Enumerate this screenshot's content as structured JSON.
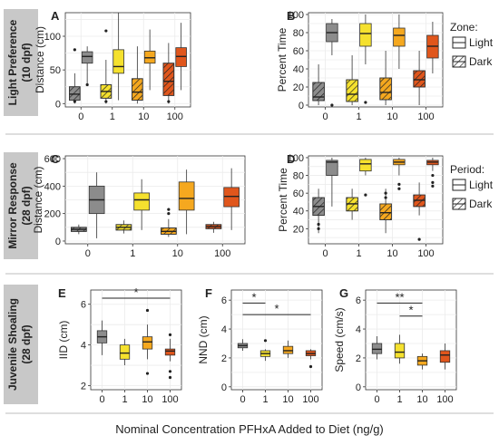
{
  "colors": {
    "c0": "#8c8c8c",
    "c1": "#f5e12e",
    "c10": "#f5a81f",
    "c100": "#e0561c",
    "grid": "#ebebeb",
    "panel": "#ffffff",
    "strip": "#c8c8c8",
    "sep": "#bdbdbd"
  },
  "row_labels": [
    {
      "line1": "Light Preference",
      "line2": "(10 dpf)"
    },
    {
      "line1": "Mirror Response",
      "line2": "(28 dpf)"
    },
    {
      "line1": "Juvenile Shoaling",
      "line2": "(28 dpf)"
    }
  ],
  "legends": [
    {
      "title": "Zone:",
      "items": [
        "Light",
        "Dark"
      ]
    },
    {
      "title": "Period:",
      "items": [
        "Light",
        "Dark"
      ]
    }
  ],
  "footer": "Nominal Concentration PFHxA Added to Diet (ng/g)",
  "chart_data": [
    {
      "letter": "A",
      "type": "box",
      "ylabel": "Distance (cm)",
      "ylim": [
        -5,
        135
      ],
      "yticks": [
        0,
        50,
        100
      ],
      "categories": [
        "0",
        "1",
        "10",
        "100"
      ],
      "series": [
        {
          "hatch": true,
          "boxes": [
            [
              0,
              5,
              14,
              25,
              45
            ],
            [
              0,
              8,
              18,
              28,
              65
            ],
            [
              0,
              5,
              17,
              37,
              85
            ],
            [
              0,
              12,
              33,
              60,
              90
            ]
          ],
          "outliers": [
            [
              0,
              80
            ],
            [
              0,
              3
            ],
            [
              1,
              108
            ],
            [
              1,
              3
            ],
            [
              3,
              3
            ]
          ]
        },
        {
          "hatch": false,
          "boxes": [
            [
              30,
              60,
              70,
              77,
              85
            ],
            [
              5,
              45,
              55,
              80,
              135
            ],
            [
              20,
              60,
              68,
              78,
              110
            ],
            [
              20,
              55,
              70,
              83,
              120
            ]
          ],
          "outliers": [
            [
              0,
              28
            ]
          ]
        }
      ]
    },
    {
      "letter": "B",
      "type": "box",
      "ylabel": "Percent Time",
      "ylim": [
        -2,
        102
      ],
      "yticks": [
        0,
        20,
        40,
        60,
        80,
        100
      ],
      "categories": [
        "0",
        "1",
        "10",
        "100"
      ],
      "series": [
        {
          "hatch": true,
          "boxes": [
            [
              0,
              5,
              9,
              25,
              45
            ],
            [
              0,
              4,
              12,
              28,
              55
            ],
            [
              0,
              6,
              14,
              30,
              60
            ],
            [
              0,
              20,
              28,
              38,
              60
            ]
          ],
          "outliers": []
        },
        {
          "hatch": false,
          "boxes": [
            [
              55,
              70,
              80,
              90,
              95
            ],
            [
              45,
              65,
              79,
              90,
              100
            ],
            [
              40,
              65,
              77,
              85,
              100
            ],
            [
              35,
              52,
              65,
              77,
              92
            ]
          ],
          "outliers": [
            [
              0,
              0
            ],
            [
              1,
              3
            ]
          ]
        }
      ]
    },
    {
      "letter": "C",
      "type": "box",
      "ylabel": "Distance (cm)",
      "ylim": [
        -20,
        620
      ],
      "yticks": [
        0,
        200,
        400,
        600
      ],
      "categories": [
        "0",
        "1",
        "10",
        "100"
      ],
      "series": [
        {
          "hatch": true,
          "boxes": [
            [
              50,
              70,
              85,
              100,
              120
            ],
            [
              55,
              80,
              100,
              120,
              150
            ],
            [
              30,
              50,
              70,
              95,
              160
            ],
            [
              60,
              90,
              105,
              120,
              140
            ]
          ],
          "outliers": [
            [
              2,
              230
            ],
            [
              2,
              200
            ]
          ]
        },
        {
          "hatch": false,
          "boxes": [
            [
              20,
              200,
              300,
              400,
              500
            ],
            [
              80,
              225,
              300,
              350,
              450
            ],
            [
              50,
              225,
              310,
              430,
              520
            ],
            [
              80,
              250,
              325,
              390,
              530
            ]
          ],
          "outliers": []
        }
      ]
    },
    {
      "letter": "D",
      "type": "box",
      "ylabel": "Percent Time",
      "ylim": [
        3,
        102
      ],
      "yticks": [
        20,
        40,
        60,
        80,
        100
      ],
      "categories": [
        "0",
        "1",
        "10",
        "100"
      ],
      "series": [
        {
          "hatch": true,
          "boxes": [
            [
              15,
              35,
              45,
              55,
              65
            ],
            [
              30,
              40,
              48,
              55,
              65
            ],
            [
              15,
              30,
              38,
              48,
              65
            ],
            [
              35,
              45,
              52,
              58,
              72
            ]
          ],
          "outliers": [
            [
              0,
              25
            ],
            [
              0,
              20
            ],
            [
              2,
              55
            ],
            [
              2,
              60
            ],
            [
              3,
              8
            ]
          ]
        },
        {
          "hatch": false,
          "boxes": [
            [
              45,
              80,
              95,
              97,
              100
            ],
            [
              80,
              85,
              93,
              98,
              100
            ],
            [
              80,
              92,
              95,
              98,
              100
            ],
            [
              85,
              92,
              95,
              97,
              100
            ]
          ],
          "outliers": [
            [
              1,
              58
            ],
            [
              2,
              70
            ],
            [
              2,
              65
            ],
            [
              3,
              80
            ],
            [
              3,
              72
            ],
            [
              3,
              68
            ]
          ]
        }
      ]
    },
    {
      "letter": "E",
      "type": "box",
      "ylabel": "IID (cm)",
      "ylim": [
        1.8,
        6.7
      ],
      "yticks": [
        2,
        4,
        6
      ],
      "categories": [
        "0",
        "1",
        "10",
        "100"
      ],
      "series": [
        {
          "hatch": false,
          "boxes": [
            [
              3.5,
              4.1,
              4.4,
              4.7,
              5.2
            ],
            [
              3.0,
              3.3,
              3.6,
              4.0,
              4.3
            ],
            [
              3.3,
              3.8,
              4.15,
              4.4,
              5.0
            ],
            [
              3.2,
              3.5,
              3.7,
              3.8,
              4.3
            ]
          ],
          "outliers": [
            [
              2,
              5.7
            ],
            [
              2,
              2.6
            ],
            [
              3,
              4.5
            ],
            [
              3,
              2.7
            ],
            [
              3,
              2.4
            ]
          ]
        }
      ],
      "sig": [
        {
          "from": 0,
          "to": 3,
          "label": "*",
          "y": 6.3
        }
      ]
    },
    {
      "letter": "F",
      "type": "box",
      "ylabel": "NND (cm)",
      "ylim": [
        -0.2,
        6.7
      ],
      "yticks": [
        0,
        2,
        4,
        6
      ],
      "categories": [
        "0",
        "1",
        "10",
        "100"
      ],
      "series": [
        {
          "hatch": false,
          "boxes": [
            [
              2.5,
              2.7,
              2.85,
              3.0,
              3.3
            ],
            [
              1.8,
              2.1,
              2.3,
              2.5,
              2.6
            ],
            [
              2.0,
              2.3,
              2.5,
              2.8,
              3.2
            ],
            [
              1.9,
              2.15,
              2.3,
              2.5,
              2.6
            ]
          ],
          "outliers": [
            [
              1,
              3.2
            ],
            [
              3,
              1.4
            ]
          ]
        }
      ],
      "sig": [
        {
          "from": 0,
          "to": 1,
          "label": "*",
          "y": 5.8
        },
        {
          "from": 0,
          "to": 3,
          "label": "*",
          "y": 5.0
        }
      ]
    },
    {
      "letter": "G",
      "type": "box",
      "ylabel": "Speed (cm/s)",
      "ylim": [
        -0.2,
        6.7
      ],
      "yticks": [
        0,
        2,
        4,
        6
      ],
      "categories": [
        "0",
        "1",
        "10",
        "100"
      ],
      "series": [
        {
          "hatch": false,
          "boxes": [
            [
              1.9,
              2.3,
              2.6,
              3.0,
              3.5
            ],
            [
              1.6,
              2.0,
              2.4,
              3.0,
              3.6
            ],
            [
              1.2,
              1.5,
              1.8,
              2.1,
              2.3
            ],
            [
              1.2,
              1.7,
              2.2,
              2.5,
              3.0
            ]
          ],
          "outliers": []
        }
      ],
      "sig": [
        {
          "from": 0,
          "to": 2,
          "label": "**",
          "y": 5.8
        },
        {
          "from": 1,
          "to": 2,
          "label": "*",
          "y": 4.9
        }
      ]
    }
  ]
}
